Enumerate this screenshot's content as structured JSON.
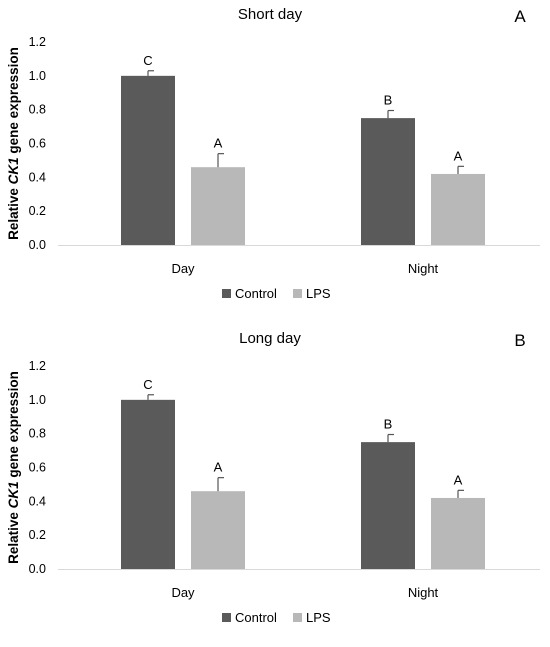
{
  "chart_data": [
    {
      "type": "bar",
      "title": "Short day",
      "panel_label": "A",
      "ylabel_parts": [
        "Relative ",
        "CK1",
        " gene expression"
      ],
      "categories": [
        "Day",
        "Night"
      ],
      "series": [
        {
          "name": "Control",
          "color": "#5a5a5a",
          "values": [
            1.0,
            0.75
          ],
          "errors": [
            0.03,
            0.045
          ],
          "letters": [
            "C",
            "B"
          ]
        },
        {
          "name": "LPS",
          "color": "#b8b8b8",
          "values": [
            0.46,
            0.42
          ],
          "errors": [
            0.08,
            0.045
          ],
          "letters": [
            "A",
            "A"
          ]
        }
      ],
      "yticks": [
        "0.0",
        "0.2",
        "0.4",
        "0.6",
        "0.8",
        "1.0",
        "1.2"
      ],
      "ylim": [
        0,
        1.2
      ],
      "legend": "bottom"
    },
    {
      "type": "bar",
      "title": "Long day",
      "panel_label": "B",
      "ylabel_parts": [
        "Relative ",
        "CK1",
        " gene expression"
      ],
      "categories": [
        "Day",
        "Night"
      ],
      "series": [
        {
          "name": "Control",
          "color": "#5a5a5a",
          "values": [
            1.0,
            0.75
          ],
          "errors": [
            0.03,
            0.045
          ],
          "letters": [
            "C",
            "B"
          ]
        },
        {
          "name": "LPS",
          "color": "#b8b8b8",
          "values": [
            0.46,
            0.42
          ],
          "errors": [
            0.08,
            0.045
          ],
          "letters": [
            "A",
            "A"
          ]
        }
      ],
      "yticks": [
        "0.0",
        "0.2",
        "0.4",
        "0.6",
        "0.8",
        "1.0",
        "1.2"
      ],
      "ylim": [
        0,
        1.2
      ],
      "legend": "bottom"
    }
  ]
}
